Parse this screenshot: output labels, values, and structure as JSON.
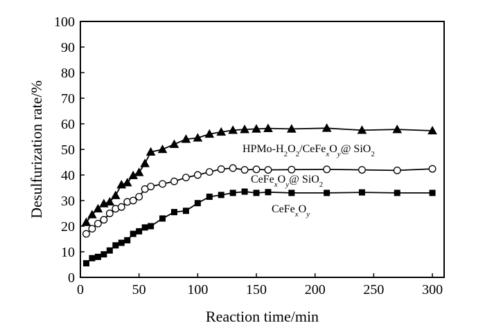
{
  "chart_data": {
    "type": "line",
    "xlabel": "Reaction time/min",
    "ylabel": "Desulfurization rate/%",
    "xlim": [
      0,
      310
    ],
    "ylim": [
      0,
      100
    ],
    "xticks": [
      0,
      50,
      100,
      150,
      200,
      250,
      300
    ],
    "yticks": [
      0,
      10,
      20,
      30,
      40,
      50,
      60,
      70,
      80,
      90,
      100
    ],
    "grid": false,
    "legend": "inline labels",
    "series": [
      {
        "name": "HPMo-H2O2/CeFexOy@ SiO2",
        "marker": "filled-triangle",
        "x": [
          5,
          10,
          15,
          20,
          25,
          30,
          35,
          40,
          45,
          50,
          55,
          60,
          70,
          80,
          90,
          100,
          110,
          120,
          130,
          140,
          150,
          160,
          180,
          210,
          240,
          270,
          300
        ],
        "y": [
          21.5,
          24.5,
          26.8,
          28.8,
          29.5,
          32,
          36.2,
          37,
          39.8,
          41,
          44.5,
          49,
          50,
          52,
          54,
          54.5,
          56,
          56.8,
          57.5,
          57.8,
          58,
          58.2,
          58,
          58.3,
          57.5,
          57.8,
          57.3
        ]
      },
      {
        "name": "CeFexOy@ SiO2",
        "marker": "open-circle",
        "x": [
          5,
          10,
          15,
          20,
          25,
          30,
          35,
          40,
          45,
          50,
          55,
          60,
          70,
          80,
          90,
          100,
          110,
          120,
          130,
          140,
          150,
          160,
          180,
          210,
          240,
          270,
          300
        ],
        "y": [
          17,
          19,
          21,
          22.5,
          25,
          26.8,
          27.5,
          29.5,
          30,
          31.5,
          34.5,
          35.5,
          36.5,
          37.5,
          39,
          40,
          41.2,
          42.3,
          42.7,
          42,
          42.2,
          42,
          42.1,
          42.2,
          42,
          41.8,
          42.4
        ]
      },
      {
        "name": "CeFexOy",
        "marker": "filled-square",
        "x": [
          5,
          10,
          15,
          20,
          25,
          30,
          35,
          40,
          45,
          50,
          55,
          60,
          70,
          80,
          90,
          100,
          110,
          120,
          130,
          140,
          150,
          160,
          180,
          210,
          240,
          270,
          300
        ],
        "y": [
          5.5,
          7.5,
          8,
          9,
          10.5,
          12.5,
          13.5,
          14.5,
          17,
          18,
          19.5,
          20,
          23,
          25.5,
          26,
          29,
          31.5,
          32.2,
          33,
          33.5,
          33,
          33.3,
          33,
          33,
          33.2,
          33,
          33
        ]
      }
    ],
    "annotations": [
      {
        "series_index": 0,
        "text": "HPMo-H2O2/CeFexOy@ SiO2"
      },
      {
        "series_index": 1,
        "text": "CeFexOy@ SiO2"
      },
      {
        "series_index": 2,
        "text": "CeFexOy"
      }
    ]
  }
}
